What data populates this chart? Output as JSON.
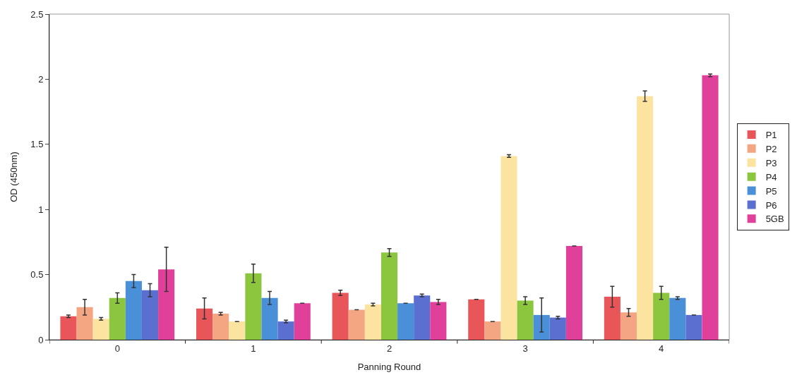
{
  "chart_data": {
    "type": "bar",
    "xlabel": "Panning Round",
    "ylabel": "OD (450nm)",
    "categories": [
      "0",
      "1",
      "2",
      "3",
      "4"
    ],
    "series": [
      {
        "name": "P1",
        "color": "#e8565a",
        "values": [
          0.18,
          0.24,
          0.36,
          0.31,
          0.33
        ],
        "errors": [
          0.01,
          0.08,
          0.02,
          null,
          0.08
        ]
      },
      {
        "name": "P2",
        "color": "#f4a582",
        "values": [
          0.25,
          0.2,
          0.23,
          0.14,
          0.21
        ],
        "errors": [
          0.06,
          0.01,
          null,
          null,
          0.03
        ]
      },
      {
        "name": "P3",
        "color": "#fde3a0",
        "values": [
          0.16,
          0.14,
          0.27,
          1.41,
          1.87
        ],
        "errors": [
          0.01,
          null,
          0.01,
          0.01,
          0.04
        ]
      },
      {
        "name": "P4",
        "color": "#8cc63f",
        "values": [
          0.32,
          0.51,
          0.67,
          0.3,
          0.36
        ],
        "errors": [
          0.04,
          0.07,
          0.03,
          0.03,
          0.05
        ]
      },
      {
        "name": "P5",
        "color": "#4a90d9",
        "values": [
          0.45,
          0.32,
          0.28,
          0.19,
          0.32
        ],
        "errors": [
          0.05,
          0.05,
          null,
          0.13,
          0.01
        ]
      },
      {
        "name": "P6",
        "color": "#5b6fd0",
        "values": [
          0.38,
          0.14,
          0.34,
          0.17,
          0.19
        ],
        "errors": [
          0.05,
          0.01,
          0.01,
          0.01,
          null
        ]
      },
      {
        "name": "5GB",
        "color": "#e0409a",
        "values": [
          0.54,
          0.28,
          0.29,
          0.72,
          2.03
        ],
        "errors": [
          0.17,
          null,
          0.02,
          null,
          0.01
        ]
      }
    ],
    "ylim": [
      0,
      2.5
    ],
    "yticks": [
      0,
      0.5,
      1,
      1.5,
      2,
      2.5
    ],
    "grid": false,
    "legend": "right"
  }
}
